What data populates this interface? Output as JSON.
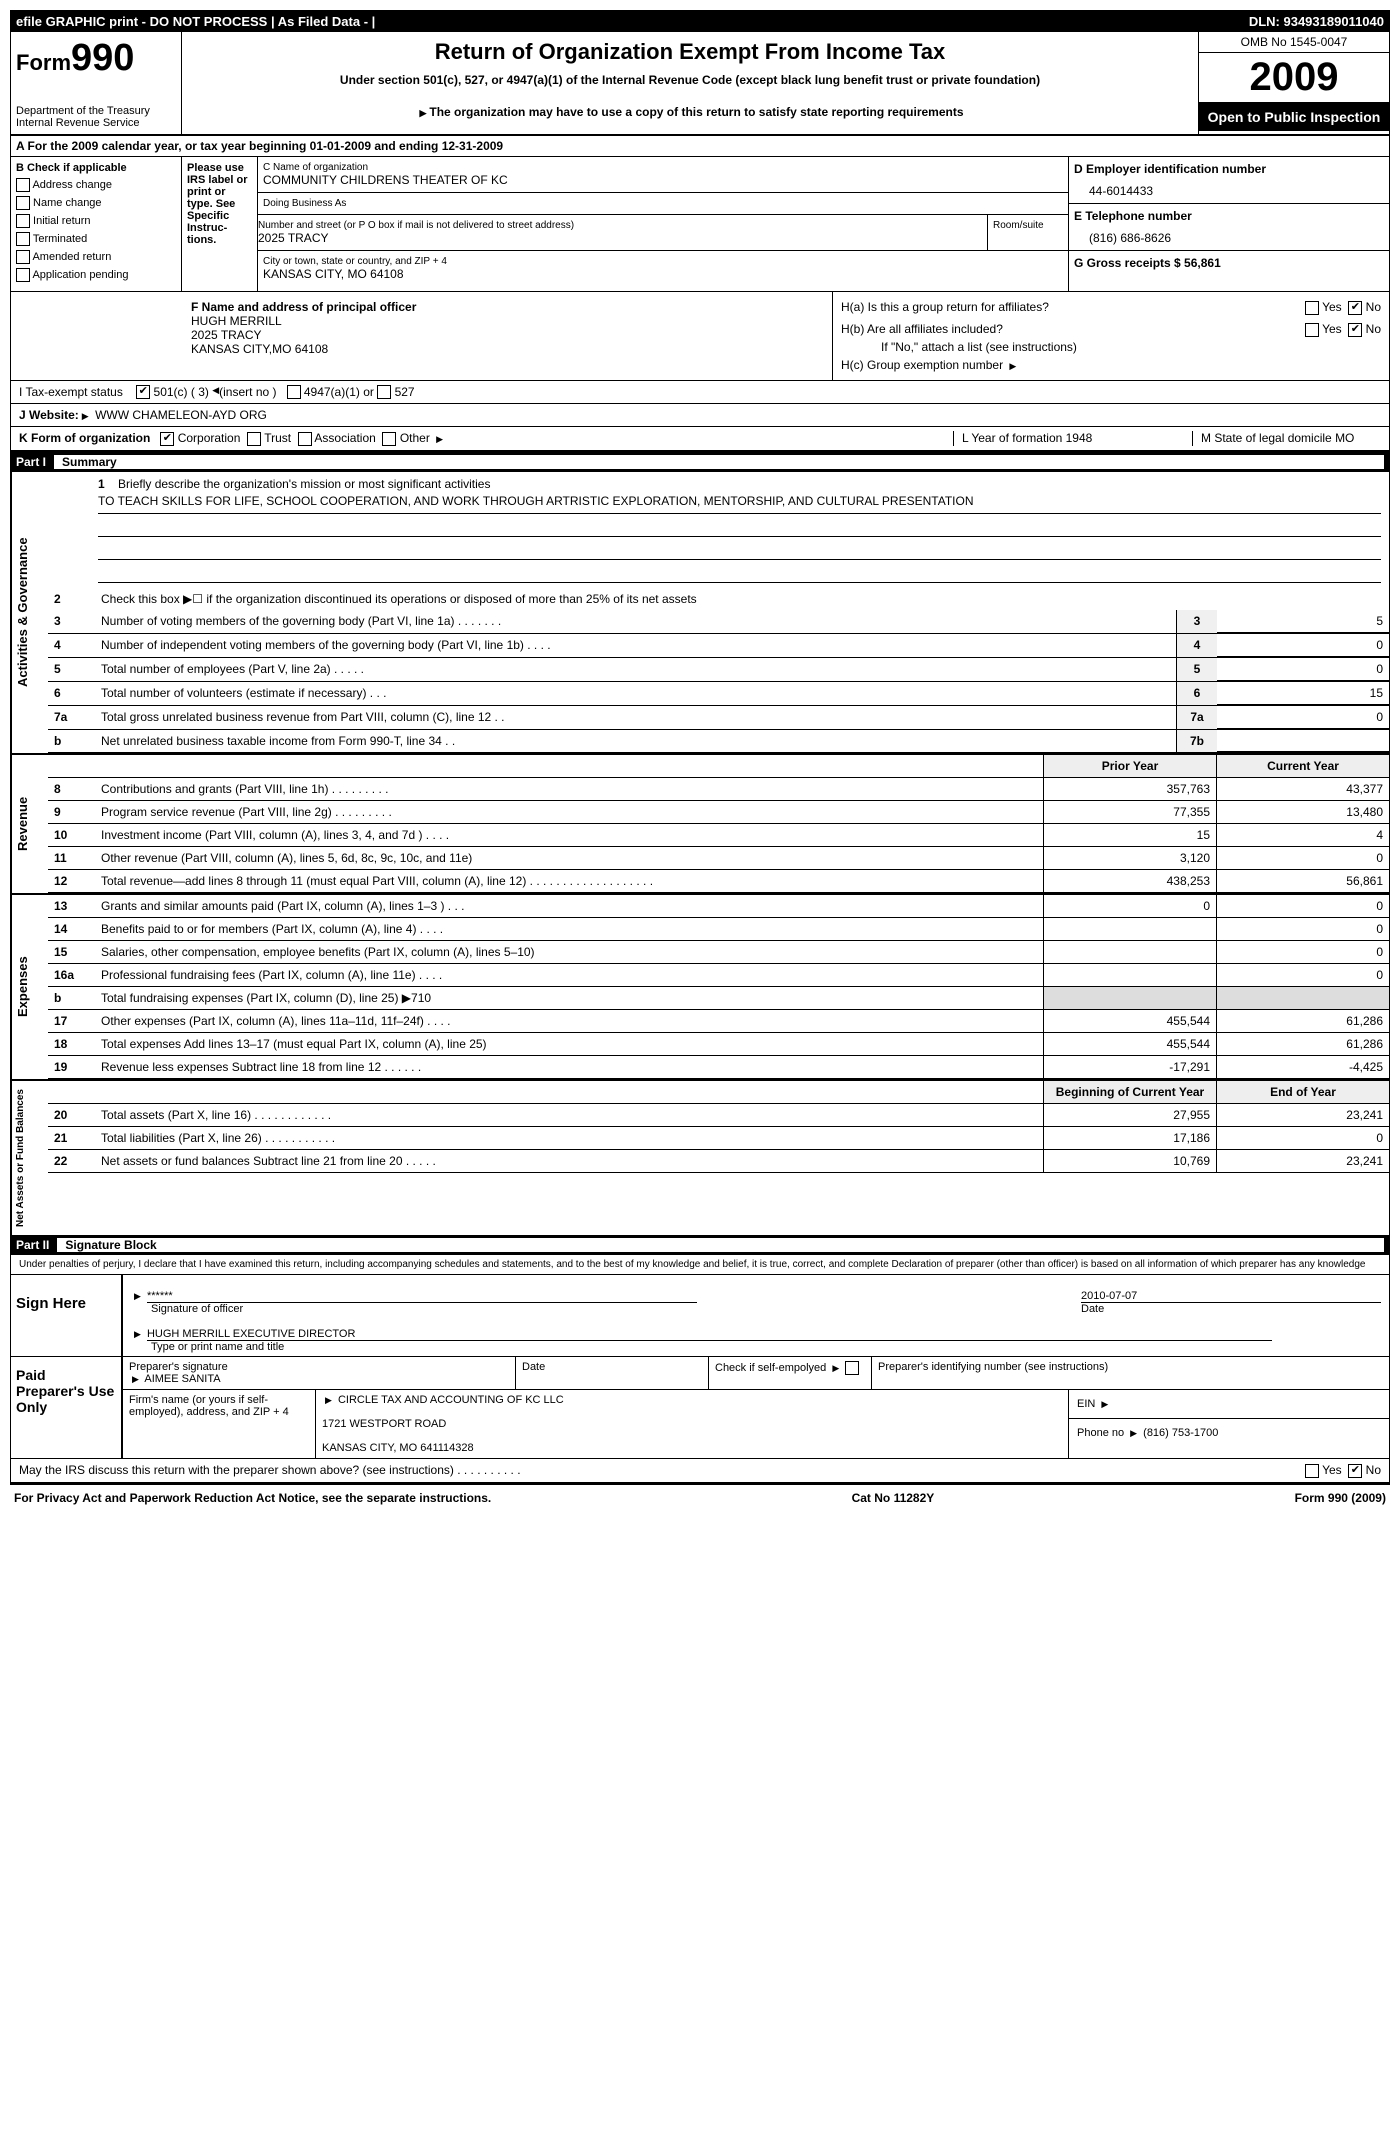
{
  "topbar": {
    "left": "efile GRAPHIC print - DO NOT PROCESS  | As Filed Data -  |",
    "right": "DLN: 93493189011040"
  },
  "header": {
    "form_label": "Form",
    "form_number": "990",
    "dept": "Department of the Treasury\nInternal Revenue Service",
    "title": "Return of Organization Exempt From Income Tax",
    "subtitle": "Under section 501(c), 527, or 4947(a)(1) of the Internal Revenue Code (except black lung benefit trust or private foundation)",
    "note": "The organization may have to use a copy of this return to satisfy state reporting requirements",
    "omb": "OMB No 1545-0047",
    "year": "2009",
    "inspection": "Open to Public Inspection"
  },
  "section_a": "A  For the 2009  calendar year, or tax year beginning 01-01-2009    and ending 12-31-2009",
  "checkboxes": {
    "header": "B  Check if applicable",
    "items": [
      "Address change",
      "Name change",
      "Initial return",
      "Terminated",
      "Amended return",
      "Application pending"
    ]
  },
  "irs_label": "Please use IRS label or print or type. See Specific Instruc-tions.",
  "org": {
    "c_label": "C Name of organization",
    "name": "COMMUNITY CHILDRENS THEATER OF KC",
    "dba_label": "Doing Business As",
    "dba": "",
    "street_label": "Number and street (or P O  box if mail is not delivered to street address)",
    "room_label": "Room/suite",
    "street": "2025 TRACY",
    "city_label": "City or town, state or country, and ZIP + 4",
    "city": "KANSAS CITY, MO  64108"
  },
  "right_info": {
    "d_label": "D Employer identification number",
    "ein": "44-6014433",
    "e_label": "E Telephone number",
    "phone": "(816) 686-8626",
    "g_label": "G Gross receipts $ 56,861"
  },
  "officer": {
    "f_label": "F   Name and address of principal officer",
    "name": "HUGH MERRILL",
    "street": "2025 TRACY",
    "city": "KANSAS CITY,MO  64108"
  },
  "h_section": {
    "ha": "H(a)  Is this a group return for affiliates?",
    "hb": "H(b)  Are all affiliates included?",
    "hb_note": "If \"No,\" attach a list  (see instructions)",
    "hc": "H(c)   Group exemption number",
    "yes": "Yes",
    "no": "No"
  },
  "tax_status": {
    "i": "I   Tax-exempt status",
    "opt1": "501(c) ( 3)",
    "insert": "(insert no )",
    "opt2": "4947(a)(1) or",
    "opt3": "527"
  },
  "website": {
    "j": "J   Website:",
    "url": "WWW CHAMELEON-AYD ORG"
  },
  "k_row": {
    "k": "K Form of organization",
    "corp": "Corporation",
    "trust": "Trust",
    "assoc": "Association",
    "other": "Other",
    "l": "L Year of formation  1948",
    "m": "M State of legal domicile MO"
  },
  "part1": {
    "num": "Part I",
    "title": "Summary"
  },
  "summary": {
    "line1_label": "Briefly describe the organization's mission or most significant activities",
    "mission": "TO TEACH SKILLS FOR LIFE, SCHOOL COOPERATION, AND WORK THROUGH ARTRISTIC EXPLORATION, MENTORSHIP, AND CULTURAL PRESENTATION",
    "line2": "Check this box ▶☐ if the organization discontinued its operations or disposed of more than 25% of its net assets",
    "governance": [
      {
        "n": "3",
        "d": "Number of voting members of the governing body (Part VI, line 1a)   .   .   .   .   .   .   .",
        "b": "3",
        "v": "5"
      },
      {
        "n": "4",
        "d": "Number of independent voting members of the governing body (Part VI, line 1b)   .   .   .   .",
        "b": "4",
        "v": "0"
      },
      {
        "n": "5",
        "d": "Total number of employees (Part V, line 2a)   .   .   .   .   .",
        "b": "5",
        "v": "0"
      },
      {
        "n": "6",
        "d": "Total number of volunteers (estimate if necessary)   .   .   .",
        "b": "6",
        "v": "15"
      },
      {
        "n": "7a",
        "d": "Total gross unrelated business revenue from Part VIII, column (C), line 12   .   .",
        "b": "7a",
        "v": "0"
      },
      {
        "n": "b",
        "d": "Net unrelated business taxable income from Form 990-T, line 34   .   .",
        "b": "7b",
        "v": ""
      }
    ],
    "col_headers": {
      "prior": "Prior Year",
      "current": "Current Year"
    },
    "revenue": [
      {
        "n": "8",
        "d": "Contributions and grants (Part VIII, line 1h)   .   .   .   .   .   .   .   .   .",
        "p": "357,763",
        "c": "43,377"
      },
      {
        "n": "9",
        "d": "Program service revenue (Part VIII, line 2g)   .   .   .   .   .   .   .   .   .",
        "p": "77,355",
        "c": "13,480"
      },
      {
        "n": "10",
        "d": "Investment income (Part VIII, column (A), lines 3, 4, and 7d )   .   .   .   .",
        "p": "15",
        "c": "4"
      },
      {
        "n": "11",
        "d": "Other revenue (Part VIII, column (A), lines 5, 6d, 8c, 9c, 10c, and 11e)",
        "p": "3,120",
        "c": "0"
      },
      {
        "n": "12",
        "d": "Total revenue—add lines 8 through 11 (must equal Part VIII, column (A), line 12)   .   .   .   .   .   .   .   .   .   .   .   .   .   .   .   .   .   .   .",
        "p": "438,253",
        "c": "56,861"
      }
    ],
    "expenses": [
      {
        "n": "13",
        "d": "Grants and similar amounts paid (Part IX, column (A), lines 1–3 )   .   .   .",
        "p": "0",
        "c": "0"
      },
      {
        "n": "14",
        "d": "Benefits paid to or for members (Part IX, column (A), line 4)   .   .   .   .",
        "p": "",
        "c": "0"
      },
      {
        "n": "15",
        "d": "Salaries, other compensation, employee benefits (Part IX, column (A), lines 5–10)",
        "p": "",
        "c": "0"
      },
      {
        "n": "16a",
        "d": "Professional fundraising fees (Part IX, column (A), line 11e)   .   .   .   .",
        "p": "",
        "c": "0"
      },
      {
        "n": "b",
        "d": "Total fundraising expenses (Part IX, column (D), line 25) ▶710",
        "p": "",
        "c": "",
        "grey": true
      },
      {
        "n": "17",
        "d": "Other expenses (Part IX, column (A), lines 11a–11d, 11f–24f)   .   .   .   .",
        "p": "455,544",
        "c": "61,286"
      },
      {
        "n": "18",
        "d": "Total expenses  Add lines 13–17 (must equal Part IX, column (A), line 25)",
        "p": "455,544",
        "c": "61,286"
      },
      {
        "n": "19",
        "d": "Revenue less expenses  Subtract line 18 from line 12   .   .   .   .   .   .",
        "p": "-17,291",
        "c": "-4,425"
      }
    ],
    "net_headers": {
      "begin": "Beginning of Current Year",
      "end": "End of Year"
    },
    "net": [
      {
        "n": "20",
        "d": "Total assets (Part X, line 16)   .   .   .   .   .   .   .   .   .   .   .   .",
        "p": "27,955",
        "c": "23,241"
      },
      {
        "n": "21",
        "d": "Total liabilities (Part X, line 26)   .   .   .   .   .   .   .   .   .   .   .",
        "p": "17,186",
        "c": "0"
      },
      {
        "n": "22",
        "d": "Net assets or fund balances  Subtract line 21 from line 20   .   .   .   .   .",
        "p": "10,769",
        "c": "23,241"
      }
    ]
  },
  "part2": {
    "num": "Part II",
    "title": "Signature Block"
  },
  "penalty": "Under penalties of perjury, I declare that I have examined this return, including accompanying schedules and statements, and to the best of my knowledge and belief, it is true, correct, and complete  Declaration of preparer (other than officer) is based on all information of which preparer has any knowledge",
  "signature": {
    "sign_here": "Sign Here",
    "stars": "******",
    "sig_label": "Signature of officer",
    "date": "2010-07-07",
    "date_label": "Date",
    "name": "HUGH MERRILL EXECUTIVE DIRECTOR",
    "name_label": "Type or print name and title"
  },
  "paid": {
    "label": "Paid Preparer's Use Only",
    "prep_sig": "Preparer's signature",
    "prep_name": "AIMEE SANITA",
    "date_label": "Date",
    "check_label": "Check if self-empolyed",
    "ptin_label": "Preparer's identifying number (see instructions)",
    "firm_label": "Firm's name (or yours if self-employed), address, and ZIP + 4",
    "firm_name": "CIRCLE TAX AND ACCOUNTING OF KC LLC",
    "firm_addr1": "1721 WESTPORT ROAD",
    "firm_addr2": "KANSAS CITY, MO  641114328",
    "ein_label": "EIN",
    "phone_label": "Phone no",
    "phone": "(816) 753-1700"
  },
  "discuss": "May the IRS discuss this return with the preparer shown above? (see instructions)   .   .   .   .   .   .   .   .   .   .",
  "footer": {
    "left": "For Privacy Act and Paperwork Reduction Act Notice, see the separate instructions.",
    "mid": "Cat  No  11282Y",
    "right": "Form 990 (2009)"
  },
  "v_labels": {
    "gov": "Activities & Governance",
    "rev": "Revenue",
    "exp": "Expenses",
    "net": "Net Assets or Fund Balances"
  }
}
